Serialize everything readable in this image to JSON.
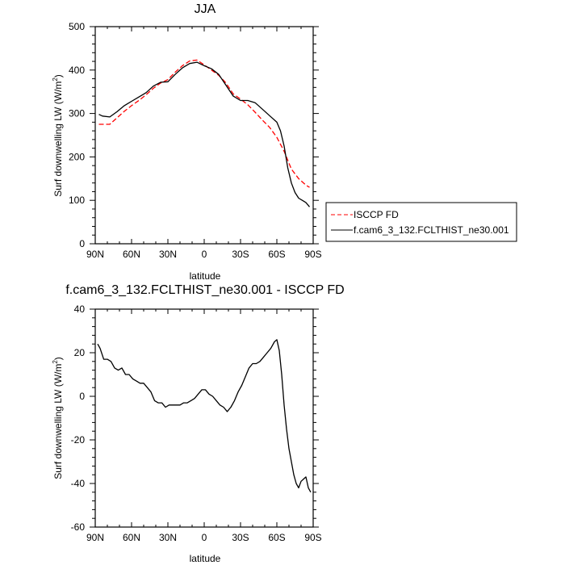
{
  "chart_data": [
    {
      "type": "line",
      "title": "JJA",
      "xlabel": "latitude",
      "ylabel": "Surf downwelling LW (W/m",
      "ylabel_sup": "2",
      "ylabel_tail": ")",
      "xlim": [
        -90,
        90
      ],
      "ylim": [
        0,
        500
      ],
      "x_ticks": [
        -90,
        -60,
        -30,
        0,
        30,
        60,
        90
      ],
      "x_tick_labels": [
        "90N",
        "60N",
        "30N",
        "0",
        "30S",
        "60S",
        "90S"
      ],
      "y_ticks": [
        0,
        100,
        200,
        300,
        400,
        500
      ],
      "y_tick_labels": [
        "0",
        "100",
        "200",
        "300",
        "400",
        "500"
      ],
      "grid": false,
      "legend_position": "right",
      "series": [
        {
          "name": "ISCCP FD",
          "color": "#ff0000",
          "dash": "dashed",
          "x": [
            -87,
            -84,
            -78,
            -72,
            -66,
            -60,
            -54,
            -48,
            -42,
            -36,
            -30,
            -24,
            -18,
            -12,
            -6,
            0,
            6,
            12,
            18,
            24,
            30,
            36,
            42,
            48,
            54,
            60,
            66,
            72,
            78,
            84,
            87
          ],
          "y": [
            275,
            275,
            275,
            290,
            305,
            318,
            330,
            343,
            358,
            370,
            378,
            395,
            410,
            421,
            423,
            412,
            400,
            388,
            370,
            345,
            333,
            320,
            303,
            285,
            268,
            245,
            213,
            172,
            150,
            135,
            130
          ]
        },
        {
          "name": "f.cam6_3_132.FCLTHIST_ne30.001",
          "color": "#000000",
          "dash": "solid",
          "x": [
            -87,
            -84,
            -78,
            -72,
            -66,
            -60,
            -54,
            -48,
            -42,
            -36,
            -30,
            -24,
            -18,
            -12,
            -6,
            0,
            6,
            12,
            18,
            24,
            30,
            36,
            42,
            48,
            54,
            60,
            63,
            66,
            69,
            72,
            75,
            78,
            81,
            84,
            87
          ],
          "y": [
            298,
            294,
            292,
            304,
            318,
            328,
            338,
            348,
            363,
            372,
            373,
            390,
            405,
            415,
            418,
            410,
            403,
            390,
            365,
            340,
            330,
            330,
            325,
            310,
            295,
            280,
            260,
            225,
            175,
            140,
            118,
            105,
            100,
            95,
            85
          ]
        }
      ]
    },
    {
      "type": "line",
      "title": "f.cam6_3_132.FCLTHIST_ne30.001 - ISCCP FD",
      "xlabel": "latitude",
      "ylabel": "Surf downwelling LW (W/m",
      "ylabel_sup": "2",
      "ylabel_tail": ")",
      "xlim": [
        -90,
        90
      ],
      "ylim": [
        -60,
        40
      ],
      "x_ticks": [
        -90,
        -60,
        -30,
        0,
        30,
        60,
        90
      ],
      "x_tick_labels": [
        "90N",
        "60N",
        "30N",
        "0",
        "30S",
        "60S",
        "90S"
      ],
      "y_ticks": [
        -60,
        -40,
        -20,
        0,
        20,
        40
      ],
      "y_tick_labels": [
        "-60",
        "-40",
        "-20",
        "0",
        "20",
        "40"
      ],
      "grid": false,
      "series": [
        {
          "name": "",
          "color": "#000000",
          "dash": "solid",
          "x": [
            -88,
            -86,
            -83,
            -80,
            -77,
            -74,
            -71,
            -68,
            -65,
            -62,
            -59,
            -56,
            -53,
            -50,
            -47,
            -44,
            -41,
            -38,
            -35,
            -32,
            -29,
            -26,
            -23,
            -20,
            -17,
            -14,
            -11,
            -8,
            -5,
            -2,
            1,
            4,
            7,
            10,
            13,
            16,
            19,
            22,
            25,
            28,
            31,
            34,
            37,
            40,
            43,
            46,
            49,
            52,
            55,
            58,
            60,
            62,
            64,
            66,
            68,
            70,
            72,
            74,
            76,
            78,
            80,
            82,
            84,
            86,
            88
          ],
          "y": [
            24,
            22,
            17,
            17,
            16,
            13,
            12,
            13,
            10,
            10,
            8,
            7,
            6,
            6,
            4,
            2,
            -2,
            -3,
            -3,
            -5,
            -4,
            -4,
            -4,
            -4,
            -3,
            -3,
            -2,
            -1,
            1,
            3,
            3,
            1,
            0,
            -2,
            -4,
            -5,
            -7,
            -5,
            -2,
            2,
            5,
            9,
            13,
            15,
            15,
            16,
            18,
            20,
            22,
            25,
            26,
            21,
            10,
            -4,
            -15,
            -24,
            -30,
            -36,
            -40,
            -42,
            -39,
            -38,
            -37,
            -42,
            -44
          ]
        }
      ]
    }
  ]
}
